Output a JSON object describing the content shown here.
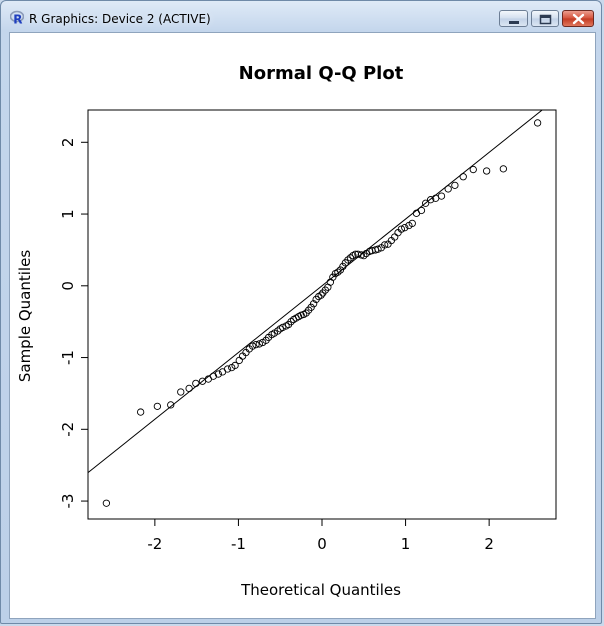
{
  "window": {
    "title": "R Graphics: Device 2 (ACTIVE)",
    "icons": {
      "app": "r-logo-icon",
      "minimize": "minimize-icon",
      "maximize": "maximize-icon",
      "close": "close-icon"
    },
    "colors": {
      "close_button": "#c9432b",
      "r_logo": "#1f3fbf"
    }
  },
  "chart_data": {
    "type": "scatter",
    "title": "Normal Q-Q Plot",
    "xlabel": "Theoretical Quantiles",
    "ylabel": "Sample Quantiles",
    "xlim": [
      -2.8,
      2.8
    ],
    "ylim": [
      -3.25,
      2.45
    ],
    "xticks": [
      -2,
      -1,
      0,
      1,
      2
    ],
    "yticks": [
      -3,
      -2,
      -1,
      0,
      1,
      2
    ],
    "xtick_labels": [
      "-2",
      "-1",
      "0",
      "1",
      "2"
    ],
    "ytick_labels": [
      "-3",
      "-2",
      "-1",
      "0",
      "1",
      "2"
    ],
    "grid": false,
    "reference_line": {
      "slope": 0.93,
      "intercept": 0.0
    },
    "points": [
      [
        -2.58,
        -3.03
      ],
      [
        -2.17,
        -1.76
      ],
      [
        -1.97,
        -1.68
      ],
      [
        -1.81,
        -1.66
      ],
      [
        -1.69,
        -1.48
      ],
      [
        -1.59,
        -1.43
      ],
      [
        -1.51,
        -1.36
      ],
      [
        -1.43,
        -1.33
      ],
      [
        -1.36,
        -1.3
      ],
      [
        -1.3,
        -1.26
      ],
      [
        -1.24,
        -1.23
      ],
      [
        -1.19,
        -1.2
      ],
      [
        -1.13,
        -1.16
      ],
      [
        -1.08,
        -1.14
      ],
      [
        -1.04,
        -1.11
      ],
      [
        -0.99,
        -1.04
      ],
      [
        -0.95,
        -0.98
      ],
      [
        -0.91,
        -0.93
      ],
      [
        -0.87,
        -0.88
      ],
      [
        -0.83,
        -0.84
      ],
      [
        -0.79,
        -0.82
      ],
      [
        -0.75,
        -0.81
      ],
      [
        -0.71,
        -0.79
      ],
      [
        -0.67,
        -0.76
      ],
      [
        -0.64,
        -0.72
      ],
      [
        -0.6,
        -0.68
      ],
      [
        -0.57,
        -0.66
      ],
      [
        -0.53,
        -0.63
      ],
      [
        -0.5,
        -0.6
      ],
      [
        -0.47,
        -0.58
      ],
      [
        -0.43,
        -0.56
      ],
      [
        -0.4,
        -0.54
      ],
      [
        -0.37,
        -0.5
      ],
      [
        -0.34,
        -0.47
      ],
      [
        -0.31,
        -0.45
      ],
      [
        -0.28,
        -0.43
      ],
      [
        -0.25,
        -0.41
      ],
      [
        -0.22,
        -0.4
      ],
      [
        -0.19,
        -0.38
      ],
      [
        -0.16,
        -0.34
      ],
      [
        -0.13,
        -0.3
      ],
      [
        -0.1,
        -0.25
      ],
      [
        -0.07,
        -0.19
      ],
      [
        -0.04,
        -0.15
      ],
      [
        -0.01,
        -0.13
      ],
      [
        0.01,
        -0.1
      ],
      [
        0.04,
        -0.06
      ],
      [
        0.07,
        -0.02
      ],
      [
        0.1,
        0.05
      ],
      [
        0.13,
        0.12
      ],
      [
        0.16,
        0.17
      ],
      [
        0.19,
        0.19
      ],
      [
        0.22,
        0.22
      ],
      [
        0.25,
        0.27
      ],
      [
        0.28,
        0.32
      ],
      [
        0.31,
        0.36
      ],
      [
        0.34,
        0.39
      ],
      [
        0.37,
        0.42
      ],
      [
        0.4,
        0.44
      ],
      [
        0.43,
        0.44
      ],
      [
        0.47,
        0.43
      ],
      [
        0.5,
        0.42
      ],
      [
        0.53,
        0.45
      ],
      [
        0.57,
        0.48
      ],
      [
        0.6,
        0.49
      ],
      [
        0.64,
        0.5
      ],
      [
        0.67,
        0.51
      ],
      [
        0.71,
        0.53
      ],
      [
        0.75,
        0.57
      ],
      [
        0.79,
        0.58
      ],
      [
        0.83,
        0.63
      ],
      [
        0.87,
        0.68
      ],
      [
        0.91,
        0.74
      ],
      [
        0.95,
        0.79
      ],
      [
        0.99,
        0.81
      ],
      [
        1.04,
        0.84
      ],
      [
        1.08,
        0.87
      ],
      [
        1.13,
        1.01
      ],
      [
        1.19,
        1.05
      ],
      [
        1.24,
        1.15
      ],
      [
        1.3,
        1.2
      ],
      [
        1.36,
        1.22
      ],
      [
        1.43,
        1.25
      ],
      [
        1.51,
        1.35
      ],
      [
        1.59,
        1.4
      ],
      [
        1.69,
        1.52
      ],
      [
        1.81,
        1.62
      ],
      [
        1.97,
        1.6
      ],
      [
        2.17,
        1.63
      ],
      [
        2.58,
        2.27
      ]
    ]
  }
}
